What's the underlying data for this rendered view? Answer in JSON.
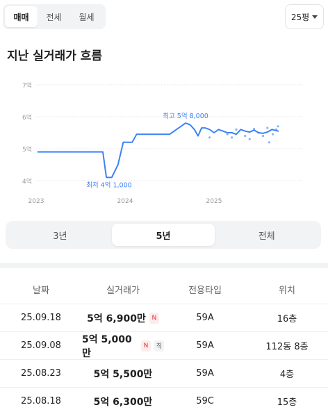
{
  "deal_type_tabs": [
    "매매",
    "전세",
    "월세"
  ],
  "size_select": {
    "value": "25평"
  },
  "section_title": "지난 실거래가 흐름",
  "chart_data": {
    "type": "line",
    "title": "",
    "xlabel": "",
    "ylabel": "",
    "y_ticks": [
      "4억",
      "5억",
      "6억",
      "7억"
    ],
    "x_ticks": [
      "2023",
      "2024",
      "2025"
    ],
    "ylim": [
      4,
      7
    ],
    "x_unit": "year",
    "grid": true,
    "line_color": "#3b82f6",
    "series": [
      {
        "x": [
          2023.02,
          2023.4,
          2023.75,
          2023.79,
          2023.85,
          2023.92,
          2023.98,
          2024.02,
          2024.08,
          2024.13,
          2024.2,
          2024.25,
          2024.5,
          2024.68,
          2024.73,
          2024.78,
          2024.82,
          2024.86,
          2024.9,
          2024.95,
          2025.0,
          2025.05,
          2025.1,
          2025.15,
          2025.2,
          2025.25,
          2025.3,
          2025.35,
          2025.4,
          2025.45,
          2025.5,
          2025.55,
          2025.6,
          2025.65,
          2025.72
        ],
        "y": [
          4.9,
          4.9,
          4.9,
          4.1,
          4.1,
          4.5,
          5.2,
          5.2,
          5.2,
          5.45,
          5.45,
          5.45,
          5.45,
          5.8,
          5.75,
          5.6,
          5.4,
          5.65,
          5.65,
          5.6,
          5.5,
          5.6,
          5.55,
          5.5,
          5.5,
          5.45,
          5.6,
          5.55,
          5.52,
          5.58,
          5.5,
          5.48,
          5.52,
          5.6,
          5.55
        ]
      }
    ],
    "scatter_points": {
      "x": [
        2024.95,
        2025.15,
        2025.2,
        2025.25,
        2025.35,
        2025.4,
        2025.45,
        2025.5,
        2025.55,
        2025.6,
        2025.62,
        2025.66,
        2025.7,
        2025.72
      ],
      "y": [
        5.35,
        5.45,
        5.35,
        5.6,
        5.4,
        5.3,
        5.62,
        5.5,
        5.4,
        5.65,
        5.2,
        5.45,
        5.6,
        5.7
      ]
    },
    "annotations": [
      {
        "text": "최고 5억 8,000",
        "x": 2024.68,
        "y": 5.8,
        "position": "above"
      },
      {
        "text": "최저 4억 1,000",
        "x": 2023.82,
        "y": 4.1,
        "position": "below"
      }
    ]
  },
  "period_tabs": [
    "3년",
    "5년",
    "전체"
  ],
  "table": {
    "headers": [
      "날짜",
      "실거래가",
      "전용타입",
      "위치"
    ],
    "rows": [
      {
        "date": "25.09.18",
        "price": "5억 6,900만",
        "badges": [
          "N"
        ],
        "type": "59A",
        "location": "16층"
      },
      {
        "date": "25.09.08",
        "price": "5억 5,000만",
        "badges": [
          "N",
          "직"
        ],
        "type": "59A",
        "location": "112동 8층"
      },
      {
        "date": "25.08.23",
        "price": "5억 5,500만",
        "badges": [],
        "type": "59A",
        "location": "4층"
      },
      {
        "date": "25.08.18",
        "price": "5억 6,300만",
        "badges": [],
        "type": "59C",
        "location": "15층"
      }
    ]
  }
}
